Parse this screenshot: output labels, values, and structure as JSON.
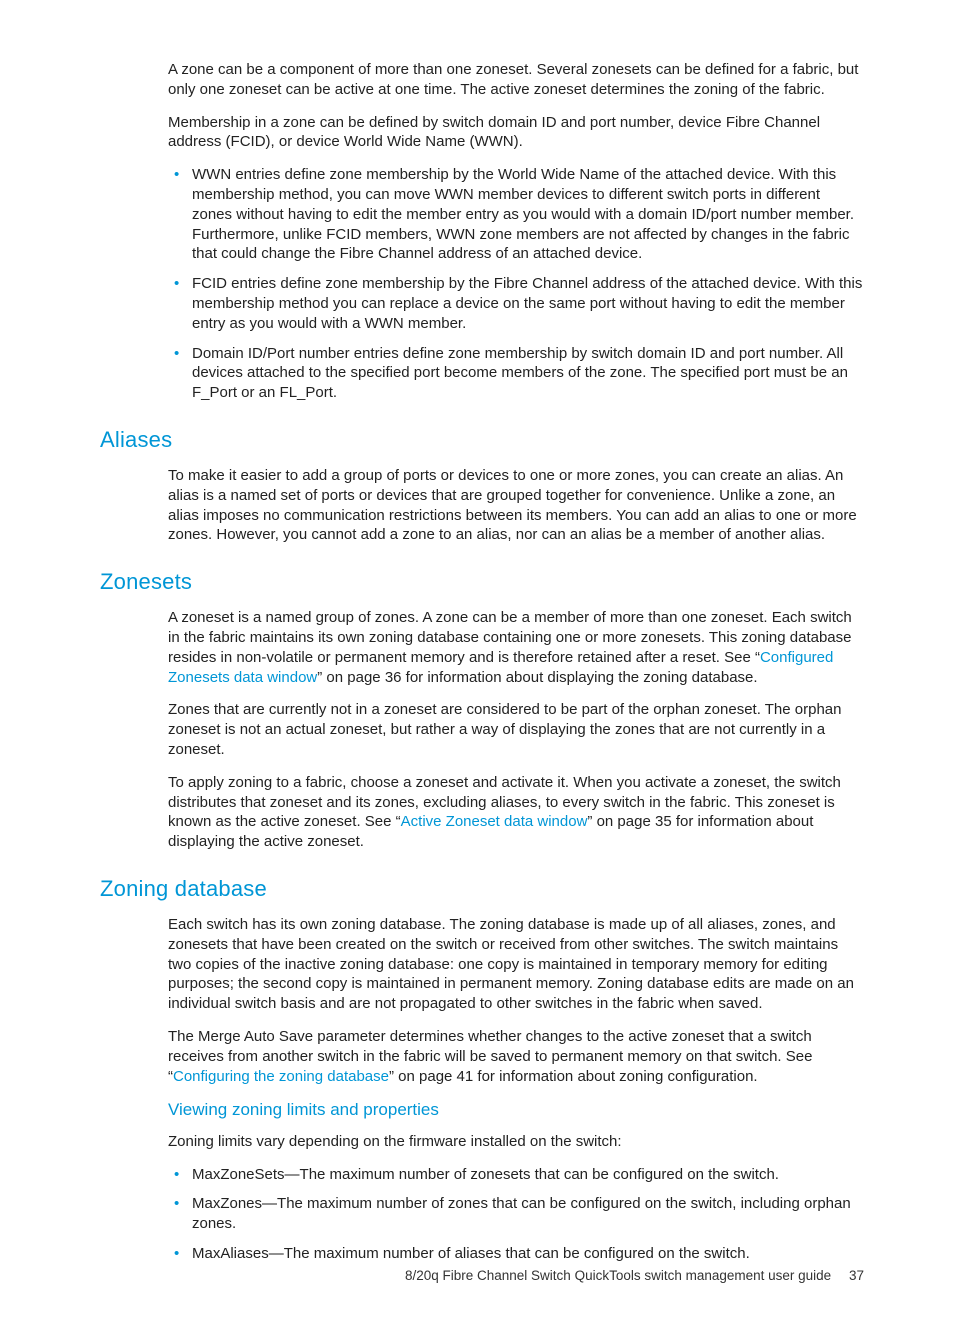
{
  "colors": {
    "brand": "#0096d6",
    "text": "#222222",
    "background": "#ffffff"
  },
  "typography": {
    "body_fontsize_pt": 11,
    "h2_fontsize_pt": 16,
    "h3_fontsize_pt": 13,
    "font_family": "Futura / sans-serif"
  },
  "intro": {
    "p1": "A zone can be a component of more than one zoneset. Several zonesets can be defined for a fabric, but only one zoneset can be active at one time. The active zoneset determines the zoning of the fabric.",
    "p2": "Membership in a zone can be defined by switch domain ID and port number, device Fibre Channel address (FCID), or device World Wide Name (WWN).",
    "bullets": [
      "WWN entries define zone membership by the World Wide Name of the attached device. With this membership method, you can move WWN member devices to different switch ports in different zones without having to edit the member entry as you would with a domain ID/port number member. Furthermore, unlike FCID members, WWN zone members are not affected by changes in the fabric that could change the Fibre Channel address of an attached device.",
      "FCID entries define zone membership by the Fibre Channel address of the attached device. With this membership method you can replace a device on the same port without having to edit the member entry as you would with a WWN member.",
      "Domain ID/Port number entries define zone membership by switch domain ID and port number. All devices attached to the specified port become members of the zone. The specified port must be an F_Port or an FL_Port."
    ]
  },
  "aliases": {
    "title": "Aliases",
    "p1": "To make it easier to add a group of ports or devices to one or more zones, you can create an alias. An alias is a named set of ports or devices that are grouped together for convenience. Unlike a zone, an alias imposes no communication restrictions between its members. You can add an alias to one or more zones. However, you cannot add a zone to an alias, nor can an alias be a member of another alias."
  },
  "zonesets": {
    "title": "Zonesets",
    "p1a": "A zoneset is a named group of zones. A zone can be a member of more than one zoneset. Each switch in the fabric maintains its own zoning database containing one or more zonesets. This zoning database resides in non-volatile or permanent memory and is therefore retained after a reset. See “",
    "p1_link": "Configured Zonesets data window",
    "p1b": "” on page 36 for information about displaying the zoning database.",
    "p2": "Zones that are currently not in a zoneset are considered to be part of the orphan zoneset. The orphan zoneset is not an actual zoneset, but rather a way of displaying the zones that are not currently in a zoneset.",
    "p3a": "To apply zoning to a fabric, choose a zoneset and activate it. When you activate a zoneset, the switch distributes that zoneset and its zones, excluding aliases, to every switch in the fabric. This zoneset is known as the active zoneset. See “",
    "p3_link": "Active Zoneset data window",
    "p3b": "” on page 35 for information about displaying the active zoneset."
  },
  "zoningdb": {
    "title": "Zoning database",
    "p1": "Each switch has its own zoning database. The zoning database is made up of all aliases, zones, and zonesets that have been created on the switch or received from other switches. The switch maintains two copies of the inactive zoning database: one copy is maintained in temporary memory for editing purposes; the second copy is maintained in permanent memory. Zoning database edits are made on an individual switch basis and are not propagated to other switches in the fabric when saved.",
    "p2a": "The Merge Auto Save parameter determines whether changes to the active zoneset that a switch receives from another switch in the fabric will be saved to permanent memory on that switch. See “",
    "p2_link": "Configuring the zoning database",
    "p2b": "” on page 41 for information about zoning configuration.",
    "sub_title": "Viewing zoning limits and properties",
    "sub_intro": "Zoning limits vary depending on the firmware installed on the switch:",
    "bullets": [
      "MaxZoneSets—The maximum number of zonesets that can be configured on the switch.",
      "MaxZones—The maximum number of zones that can be configured on the switch, including orphan zones.",
      "MaxAliases—The maximum number of aliases that can be configured on the switch."
    ]
  },
  "footer": {
    "title": "8/20q Fibre Channel Switch QuickTools switch management user guide",
    "page": "37"
  }
}
